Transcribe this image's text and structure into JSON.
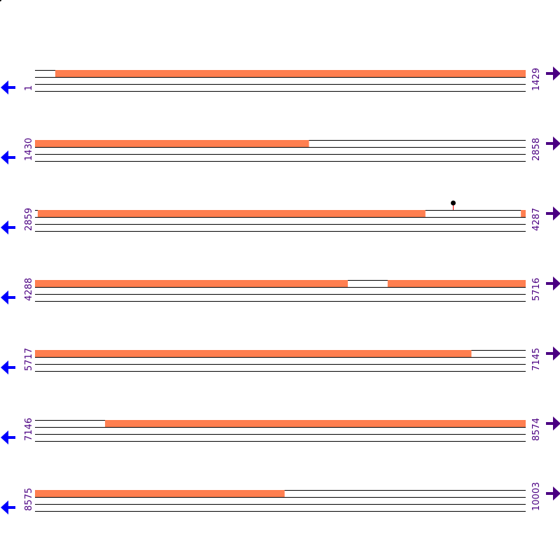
{
  "colors": {
    "feature": "#ff7f50",
    "line": "#000000",
    "label": "#4b0082",
    "arrow_right": "#4b0082",
    "arrow_left": "#0000ff",
    "marker_stem": "#ff0000",
    "marker_head": "#000000"
  },
  "chart_data": {
    "type": "sequence-map",
    "bases_per_row": 1429,
    "rows": [
      {
        "start": 1,
        "end": 1429,
        "features": [
          {
            "from": 60,
            "to": 1429
          }
        ]
      },
      {
        "start": 1430,
        "end": 2858,
        "features": [
          {
            "from": 1430,
            "to": 2227
          }
        ]
      },
      {
        "start": 2859,
        "end": 4287,
        "features": [
          {
            "from": 2867,
            "to": 3995
          },
          {
            "from": 4274,
            "to": 4287
          }
        ],
        "markers": [
          {
            "pos": 4077
          }
        ]
      },
      {
        "start": 4288,
        "end": 5716,
        "features": [
          {
            "from": 4288,
            "to": 5198
          },
          {
            "from": 5315,
            "to": 5716
          }
        ]
      },
      {
        "start": 5717,
        "end": 7145,
        "features": [
          {
            "from": 5717,
            "to": 6987
          }
        ]
      },
      {
        "start": 7146,
        "end": 8574,
        "features": [
          {
            "from": 7350,
            "to": 8574
          }
        ]
      },
      {
        "start": 8575,
        "end": 10003,
        "features": [
          {
            "from": 8575,
            "to": 9301
          }
        ]
      }
    ]
  }
}
